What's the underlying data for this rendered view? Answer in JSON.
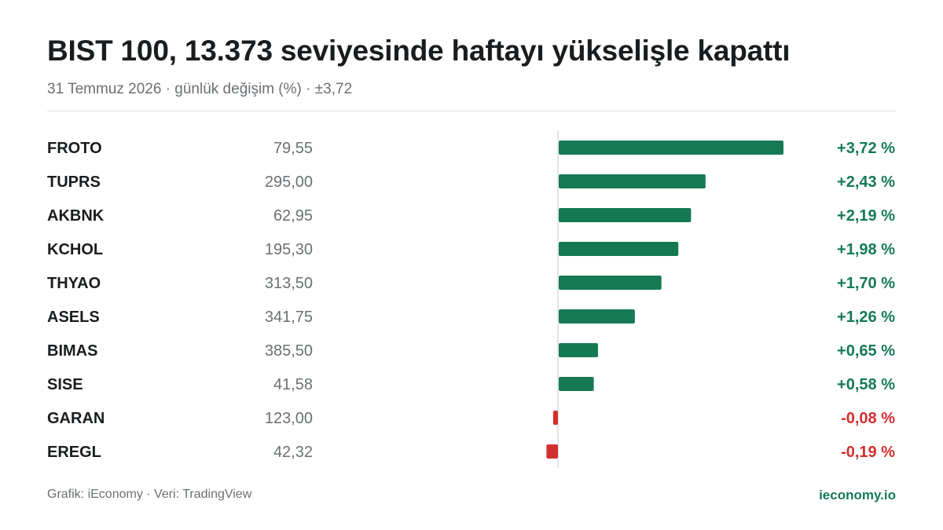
{
  "header": {
    "title": "BIST 100, 13.373 seviyesinde haftayı yükselişle kapattı",
    "subtitle": "31 Temmuz 2026 · günlük değişim (%) · ±3,72"
  },
  "colors": {
    "positive": "#157a54",
    "negative": "#d42f2f",
    "axis": "#d8dbdd"
  },
  "chart_data": {
    "type": "bar",
    "orientation": "horizontal",
    "categories": [
      "FROTO",
      "TUPRS",
      "AKBNK",
      "KCHOL",
      "THYAO",
      "ASELS",
      "BIMAS",
      "SISE",
      "GARAN",
      "EREGL"
    ],
    "prices": [
      "79,55",
      "295,00",
      "62,95",
      "195,30",
      "313,50",
      "341,75",
      "385,50",
      "41,58",
      "123,00",
      "42,32"
    ],
    "values": [
      3.72,
      2.43,
      2.19,
      1.98,
      1.7,
      1.26,
      0.65,
      0.58,
      -0.08,
      -0.19
    ],
    "value_labels": [
      "+3,72 %",
      "+2,43 %",
      "+2,19 %",
      "+1,98 %",
      "+1,70 %",
      "+1,26 %",
      "+0,65 %",
      "+0,58 %",
      "-0,08 %",
      "-0,19 %"
    ],
    "xlim": [
      -3.72,
      3.72
    ]
  },
  "footer": {
    "credit": "Grafik: iEconomy · Veri: TradingView",
    "brand": "ieconomy.io"
  }
}
